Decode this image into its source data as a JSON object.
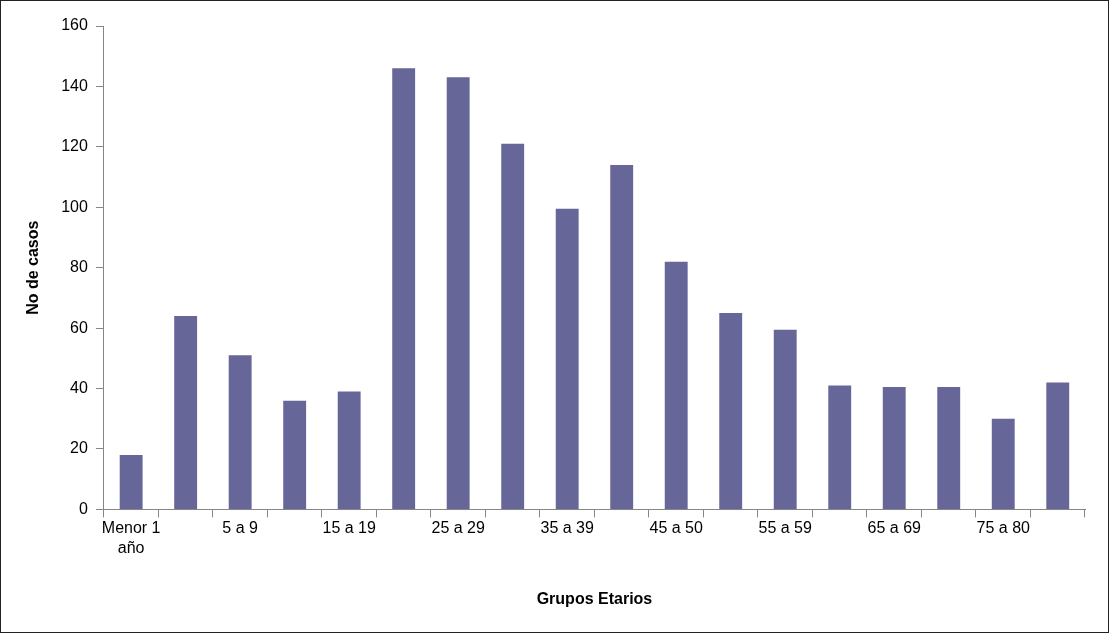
{
  "chart_data": {
    "type": "bar",
    "xlabel": "Grupos Etarios",
    "ylabel": "No de casos",
    "categories": [
      "Menor 1 año",
      null,
      "5 a 9",
      null,
      "15 a 19",
      null,
      "25 a 29",
      null,
      "35 a 39",
      null,
      "45 a 50",
      null,
      "55 a 59",
      null,
      "65 a 69",
      null,
      "75 a 80",
      null
    ],
    "values": [
      18,
      64,
      51,
      36,
      39,
      146,
      143,
      121,
      99.5,
      114,
      82,
      65,
      59.5,
      41,
      40.5,
      40.5,
      30,
      42
    ],
    "color": "#666699",
    "ylim": [
      0,
      160
    ],
    "yticks": [
      0,
      20,
      40,
      60,
      80,
      100,
      120,
      140,
      160
    ],
    "grid": false,
    "legend": false
  }
}
